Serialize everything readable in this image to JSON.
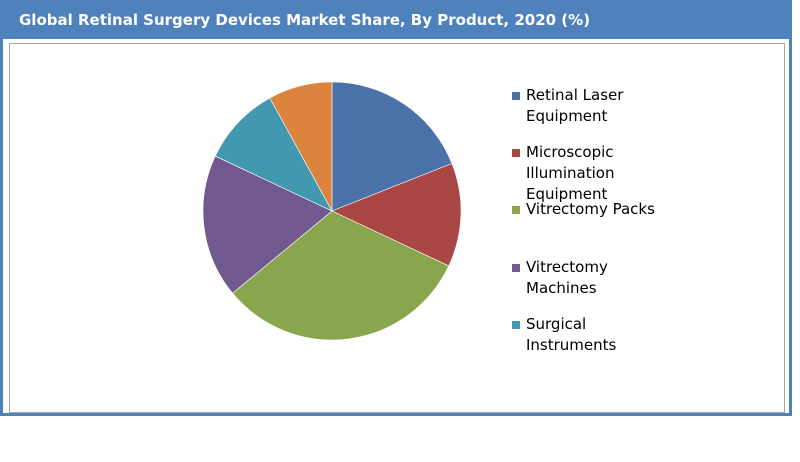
{
  "chart_data": {
    "type": "pie",
    "title": "Global Retinal Surgery Devices Market Share, By Product, 2020 (%)",
    "legend_position": "right",
    "categories": [
      "Retinal Laser Equipment",
      "Microscopic Illumination Equipment",
      "Vitrectomy Packs",
      "Vitrectomy Machines",
      "Surgical Instruments",
      ""
    ],
    "values": [
      19,
      13,
      32,
      18,
      10,
      8
    ],
    "colors": [
      "#4a72a8",
      "#aa4644",
      "#89a64e",
      "#71588f",
      "#4198af",
      "#db843d"
    ]
  }
}
